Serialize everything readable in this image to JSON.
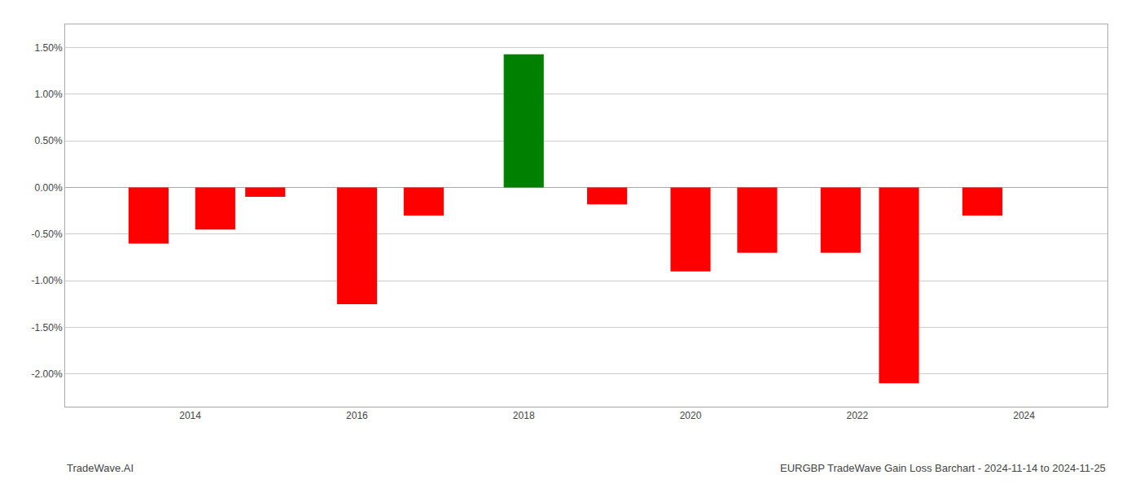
{
  "chart_data": {
    "type": "bar",
    "x": [
      2013.5,
      2014.3,
      2014.9,
      2016.0,
      2016.8,
      2018.0,
      2019.0,
      2020.0,
      2020.8,
      2021.8,
      2022.5,
      2023.5
    ],
    "values": [
      -0.006,
      -0.0045,
      -0.001,
      -0.0125,
      -0.003,
      0.0143,
      -0.0018,
      -0.009,
      -0.007,
      -0.007,
      -0.021,
      -0.003
    ],
    "colors": [
      "#ff0000",
      "#ff0000",
      "#ff0000",
      "#ff0000",
      "#ff0000",
      "#008000",
      "#ff0000",
      "#ff0000",
      "#ff0000",
      "#ff0000",
      "#ff0000",
      "#ff0000"
    ],
    "xlim": [
      2012.5,
      2025.0
    ],
    "xticks": [
      2014,
      2016,
      2018,
      2020,
      2022,
      2024
    ],
    "ylim": [
      -0.0235,
      0.0175
    ],
    "yticks": [
      {
        "value": -0.02,
        "label": "-2.00%"
      },
      {
        "value": -0.015,
        "label": "-1.50%"
      },
      {
        "value": -0.01,
        "label": "-1.00%"
      },
      {
        "value": -0.005,
        "label": "-0.50%"
      },
      {
        "value": 0.0,
        "label": "0.00%"
      },
      {
        "value": 0.005,
        "label": "0.50%"
      },
      {
        "value": 0.01,
        "label": "1.00%"
      },
      {
        "value": 0.015,
        "label": "1.50%"
      }
    ],
    "grid": true,
    "annotations": [
      "TradeWave.AI",
      "EURGBP TradeWave Gain Loss Barchart - 2024-11-14 to 2024-11-25"
    ]
  }
}
